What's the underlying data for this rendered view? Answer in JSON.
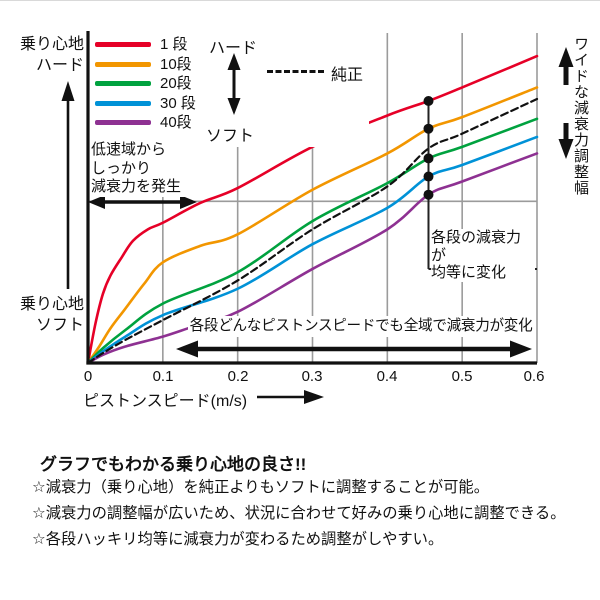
{
  "chart": {
    "y_axis_top_label": "乗り心地\nハード",
    "y_axis_bottom_label": "乗り心地\nソフト",
    "legend_hard": "ハード",
    "legend_soft": "ソフト",
    "right_axis_label": "ワイドな減衰力調整幅",
    "x_axis_title": "ピストンスピード(m/s)",
    "annotations": {
      "low_speed": "低速域から\nしっかり\n減衰力を発生",
      "equal_steps": "各段の減衰力が\n均等に変化",
      "full_range": "各段どんなピストンスピードでも全域で減衰力が変化"
    }
  },
  "chart_data": {
    "type": "line",
    "title": "",
    "xlabel": "ピストンスピード(m/s)",
    "ylabel_top": "乗り心地ハード",
    "ylabel_bottom": "乗り心地ソフト",
    "x_range": [
      0,
      0.6
    ],
    "y_range": [
      0,
      100
    ],
    "y_unit": "relative",
    "x_ticks": [
      "0",
      "0.1",
      "0.2",
      "0.3",
      "0.4",
      "0.5",
      "0.6"
    ],
    "x_gridlines": [
      0.1,
      0.2,
      0.3,
      0.4,
      0.5,
      0.6
    ],
    "y_gridline": 49,
    "grid_color": "#9b9b9b",
    "axis_color": "#111111",
    "legend_position": "top-left",
    "series": [
      {
        "name": "1 段",
        "color": "#e60027",
        "style": "solid",
        "points": [
          [
            0,
            0
          ],
          [
            0.01,
            12
          ],
          [
            0.02,
            21
          ],
          [
            0.03,
            26.5
          ],
          [
            0.045,
            32
          ],
          [
            0.06,
            37
          ],
          [
            0.08,
            40.5
          ],
          [
            0.1,
            42.5
          ],
          [
            0.15,
            48.5
          ],
          [
            0.2,
            53
          ],
          [
            0.3,
            65.5
          ],
          [
            0.4,
            75
          ],
          [
            0.455,
            79.4
          ],
          [
            0.5,
            83.5
          ],
          [
            0.6,
            93
          ]
        ]
      },
      {
        "name": "10段",
        "color": "#f29600",
        "style": "solid",
        "points": [
          [
            0,
            0
          ],
          [
            0.015,
            5
          ],
          [
            0.03,
            10.5
          ],
          [
            0.05,
            16.5
          ],
          [
            0.075,
            24
          ],
          [
            0.1,
            30.5
          ],
          [
            0.15,
            35.5
          ],
          [
            0.2,
            39
          ],
          [
            0.3,
            52.5
          ],
          [
            0.4,
            63.5
          ],
          [
            0.455,
            71
          ],
          [
            0.5,
            74.5
          ],
          [
            0.6,
            83.5
          ]
        ]
      },
      {
        "name": "20段",
        "color": "#00a23f",
        "style": "solid",
        "points": [
          [
            0,
            0
          ],
          [
            0.02,
            4.5
          ],
          [
            0.05,
            10
          ],
          [
            0.1,
            18
          ],
          [
            0.2,
            27.5
          ],
          [
            0.3,
            43
          ],
          [
            0.4,
            54.5
          ],
          [
            0.455,
            62
          ],
          [
            0.5,
            65.5
          ],
          [
            0.6,
            74
          ]
        ]
      },
      {
        "name": "30 段",
        "color": "#0092d7",
        "style": "solid",
        "points": [
          [
            0,
            0
          ],
          [
            0.02,
            3.5
          ],
          [
            0.05,
            8
          ],
          [
            0.1,
            14.5
          ],
          [
            0.2,
            22.5
          ],
          [
            0.3,
            36
          ],
          [
            0.4,
            47
          ],
          [
            0.455,
            56.5
          ],
          [
            0.5,
            60
          ],
          [
            0.6,
            68.5
          ]
        ]
      },
      {
        "name": "40段",
        "color": "#8e3192",
        "style": "solid",
        "points": [
          [
            0,
            0
          ],
          [
            0.02,
            2.5
          ],
          [
            0.05,
            5
          ],
          [
            0.1,
            8
          ],
          [
            0.14,
            11
          ],
          [
            0.2,
            15.5
          ],
          [
            0.3,
            28.5
          ],
          [
            0.4,
            40.5
          ],
          [
            0.455,
            51
          ],
          [
            0.5,
            55
          ],
          [
            0.6,
            63.5
          ]
        ]
      },
      {
        "name": "純正",
        "color": "#111111",
        "style": "dashed",
        "points": [
          [
            0,
            0
          ],
          [
            0.02,
            3
          ],
          [
            0.05,
            7
          ],
          [
            0.1,
            13
          ],
          [
            0.2,
            25
          ],
          [
            0.3,
            40.5
          ],
          [
            0.4,
            53.5
          ],
          [
            0.455,
            65
          ],
          [
            0.5,
            69.5
          ],
          [
            0.6,
            80
          ]
        ]
      }
    ],
    "dots": {
      "x": 0.455,
      "values": [
        79.4,
        71,
        62,
        56.5,
        51
      ]
    },
    "callout_y": 28.5
  },
  "footer": {
    "title": "グラフでもわかる乗り心地の良さ!!",
    "bullets": [
      "☆減衰力（乗り心地）を純正よりもソフトに調整することが可能。",
      "☆減衰力の調整幅が広いため、状況に合わせて好みの乗り心地に調整できる。",
      "☆各段ハッキリ均等に減衰力が変わるため調整がしやすい。"
    ]
  }
}
